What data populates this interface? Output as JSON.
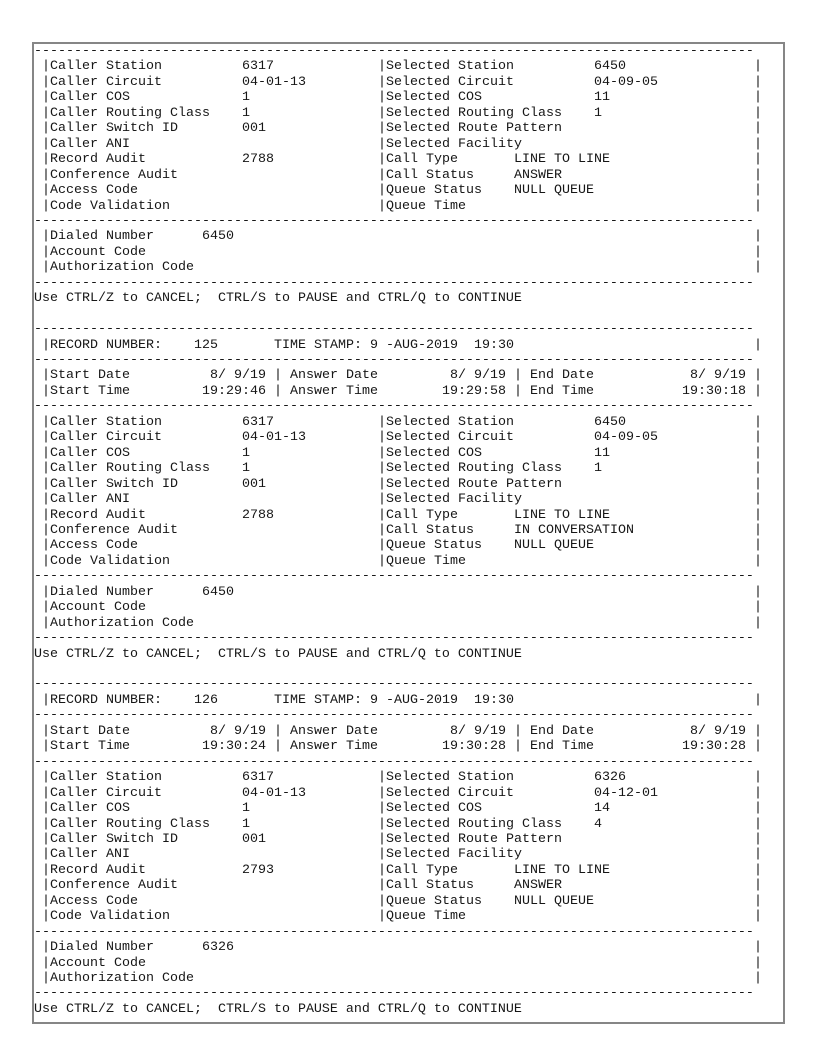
{
  "hint": "Use CTRL/Z to CANCEL;  CTRL/S to PAUSE and CTRL/Q to CONTINUE",
  "labels": {
    "record_number": "RECORD NUMBER:",
    "time_stamp": "TIME STAMP:",
    "start_date": "Start Date",
    "start_time": "Start Time",
    "answer_date": "Answer Date",
    "answer_time": "Answer Time",
    "end_date": "End Date",
    "end_time": "End Time",
    "caller_station": "Caller Station",
    "caller_circuit": "Caller Circuit",
    "caller_cos": "Caller COS",
    "caller_routing_class": "Caller Routing Class",
    "caller_switch_id": "Caller Switch ID",
    "caller_ani": "Caller ANI",
    "record_audit": "Record Audit",
    "conference_audit": "Conference Audit",
    "access_code": "Access Code",
    "code_validation": "Code Validation",
    "selected_station": "Selected Station",
    "selected_circuit": "Selected Circuit",
    "selected_cos": "Selected COS",
    "selected_routing_class": "Selected Routing Class",
    "selected_route_pattern": "Selected Route Pattern",
    "selected_facility": "Selected Facility",
    "call_type": "Call Type",
    "call_status": "Call Status",
    "queue_status": "Queue Status",
    "queue_time": "Queue Time",
    "dialed_number": "Dialed Number",
    "account_code": "Account Code",
    "authorization_code": "Authorization Code"
  },
  "records": [
    {
      "partial": true,
      "record_number": "",
      "time_stamp": "",
      "times": {
        "start_date": "",
        "start_time": "",
        "answer_date": "",
        "answer_time": "",
        "end_date": "",
        "end_time": ""
      },
      "caller": {
        "station": "6317",
        "circuit": "04-01-13",
        "cos": "1",
        "routing_class": "1",
        "switch_id": "001",
        "ani": "",
        "record_audit": "2788",
        "conference_audit": "",
        "access_code": "",
        "code_validation": ""
      },
      "selected": {
        "station": "6450",
        "circuit": "04-09-05",
        "cos": "11",
        "routing_class": "1",
        "route_pattern": "",
        "facility": ""
      },
      "call": {
        "type": "LINE TO LINE",
        "status": "ANSWER",
        "queue_status": "NULL QUEUE",
        "queue_time": ""
      },
      "dialed_number": "6450",
      "account_code": "",
      "authorization_code": ""
    },
    {
      "partial": false,
      "record_number": "125",
      "time_stamp": "9 -AUG-2019  19:30",
      "times": {
        "start_date": "8/ 9/19",
        "start_time": "19:29:46",
        "answer_date": "8/ 9/19",
        "answer_time": "19:29:58",
        "end_date": "8/ 9/19",
        "end_time": "19:30:18"
      },
      "caller": {
        "station": "6317",
        "circuit": "04-01-13",
        "cos": "1",
        "routing_class": "1",
        "switch_id": "001",
        "ani": "",
        "record_audit": "2788",
        "conference_audit": "",
        "access_code": "",
        "code_validation": ""
      },
      "selected": {
        "station": "6450",
        "circuit": "04-09-05",
        "cos": "11",
        "routing_class": "1",
        "route_pattern": "",
        "facility": ""
      },
      "call": {
        "type": "LINE TO LINE",
        "status": "IN CONVERSATION",
        "queue_status": "NULL QUEUE",
        "queue_time": ""
      },
      "dialed_number": "6450",
      "account_code": "",
      "authorization_code": ""
    },
    {
      "partial": false,
      "record_number": "126",
      "time_stamp": "9 -AUG-2019  19:30",
      "times": {
        "start_date": "8/ 9/19",
        "start_time": "19:30:24",
        "answer_date": "8/ 9/19",
        "answer_time": "19:30:28",
        "end_date": "8/ 9/19",
        "end_time": "19:30:28"
      },
      "caller": {
        "station": "6317",
        "circuit": "04-01-13",
        "cos": "1",
        "routing_class": "1",
        "switch_id": "001",
        "ani": "",
        "record_audit": "2793",
        "conference_audit": "",
        "access_code": "",
        "code_validation": ""
      },
      "selected": {
        "station": "6326",
        "circuit": "04-12-01",
        "cos": "14",
        "routing_class": "4",
        "route_pattern": "",
        "facility": ""
      },
      "call": {
        "type": "LINE TO LINE",
        "status": "ANSWER",
        "queue_status": "NULL QUEUE",
        "queue_time": ""
      },
      "dialed_number": "6326",
      "account_code": "",
      "authorization_code": ""
    }
  ]
}
